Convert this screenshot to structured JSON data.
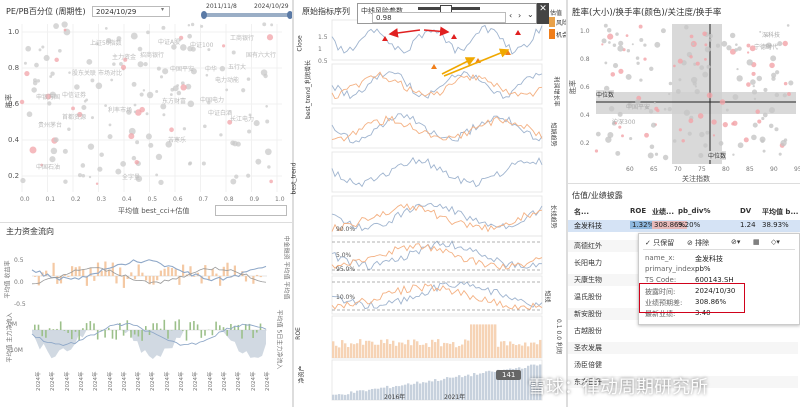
{
  "left_top": {
    "title": "PE/PB百分位 (周期性)",
    "date_value": "2024/10/29",
    "ylabel": "胜率",
    "xlabel": "平均值 best_cci+估值",
    "yticks": [
      "1.0",
      "0.8",
      "0.6",
      "0.4",
      "0.2"
    ],
    "xticks": [
      "0.0",
      "0.1",
      "0.2",
      "0.3",
      "0.4",
      "0.5",
      "0.6",
      "0.7",
      "0.8",
      "0.9",
      "1.0"
    ],
    "point_labels": [
      "上证50指数",
      "中证A股",
      "中证100",
      "工商银行",
      "国有六大行",
      "主力资金",
      "招商银行",
      "股东关联",
      "市场对比",
      "中国平安",
      "中华",
      "电力动能",
      "五行大",
      "申银万国",
      "中信证券",
      "中国电力",
      "利率市场",
      "东方财富",
      "中证白酒",
      "长江电力",
      "首都资源",
      "贵州茅台",
      "苦寒乐",
      "中国石油",
      "全字量"
    ]
  },
  "slider": {
    "start": "2011/11/8",
    "end": "2024/10/29"
  },
  "left_bottom": {
    "title": "主力资金流向",
    "chart1_ylabel": "平均值 收益率",
    "chart1_ylabel2": "中金融资 平均值 平均值",
    "chart1_yticks": [
      "0.5",
      "0.0",
      "-0.5"
    ],
    "chart2_ylabel": "平均值 主力净流入",
    "chart2_ylabel2": "平均值 5日主力净流入",
    "chart2_yticks": [
      "0M",
      "-10M"
    ],
    "xtick": "2024年"
  },
  "middle": {
    "title": "原始指标序列",
    "param_label": "中线风险参数",
    "param_value": "0.98",
    "legend_title": "估值",
    "legend_items": [
      {
        "label": "风险",
        "color": "#e8a14a"
      },
      {
        "label": "机会",
        "color": "#f07e1a"
      }
    ],
    "row_labels": [
      "Close",
      "best_trend_利润增长",
      "",
      "best_trend",
      "",
      "",
      "",
      "ROE",
      "净资产"
    ],
    "right_labels": [
      "",
      "利润增长率",
      "短期趋势",
      "",
      "长线趋势",
      "",
      "短线",
      "0.1 0.0 利润",
      ""
    ],
    "yticks_close": [
      "1.5",
      "1",
      "0.5"
    ],
    "pct_labels": [
      "90.0%",
      "5.0%",
      "95.0%",
      "10.0%"
    ],
    "x_labels": [
      "2016年",
      "2021年"
    ],
    "page_badge": "141"
  },
  "right_top": {
    "title": "胜率(大小)/换手率(颜色)/关注度/换手率",
    "ylabel": "胜率",
    "xlabel": "关注指数",
    "xticks": [
      "60",
      "65",
      "70",
      "75",
      "80",
      "85",
      "90",
      "95"
    ],
    "yticks": [
      "1.0",
      "0.8",
      "0.6",
      "0.4",
      "0.2"
    ],
    "median_label_h": "中位数",
    "median_label_v": "中位数",
    "point_labels": [
      "深科技",
      "宁德时代",
      "中国平安",
      "沪深300"
    ]
  },
  "right_table": {
    "title": "估值/业绩披露",
    "columns": [
      "名...",
      "ROE",
      "业绩...",
      "pb_div%",
      "DV",
      "平均值 b..."
    ],
    "selected_row": {
      "name": "金发科技",
      "roe": "1.32%",
      "yj": "308.86%",
      "pb": "9.20%",
      "dv": "1.24",
      "avg": "38.93%"
    },
    "rows": [
      "高德红外",
      "长阳电力",
      "天康生物",
      "温氏股份",
      "新安股份",
      "古越股份",
      "圣农发展",
      "汤臣倍健",
      "东方日升"
    ]
  },
  "tooltip": {
    "keep_label": "只保留",
    "exclude_label": "排除",
    "fields": [
      {
        "key": "name_x:",
        "value": "金发科技"
      },
      {
        "key": "primary_index:",
        "value": "pb%"
      },
      {
        "key": "TS Code:",
        "value": "600143.SH"
      },
      {
        "key": "披露时间:",
        "value": "2024/10/30"
      },
      {
        "key": "业绩预期差:",
        "value": "308.86%"
      },
      {
        "key": "最新业绩:",
        "value": "3.40"
      }
    ]
  },
  "watermark": "雪球：律动周期研究所",
  "colors": {
    "accent": "#f07e1a",
    "blue_line": "#8fa8c8",
    "orange_line": "#f4b183",
    "red_arrow": "#e02020",
    "gold_arrow": "#f0a800",
    "highlight": "#d0021b"
  }
}
